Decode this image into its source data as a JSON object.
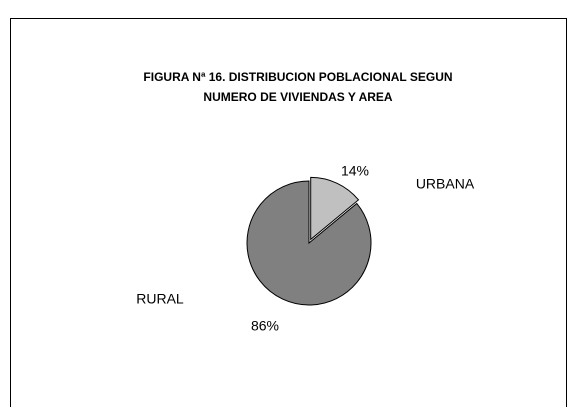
{
  "chart_data": {
    "type": "pie",
    "title": [
      "FIGURA Nª 16.  DISTRIBUCION POBLACIONAL SEGUN",
      "NUMERO DE VIVIENDAS Y AREA"
    ],
    "categories": [
      "URBANA",
      "RURAL"
    ],
    "values": [
      14,
      86
    ],
    "value_labels": [
      "14%",
      "86%"
    ],
    "colors": [
      "#c0c0c0",
      "#808080"
    ]
  }
}
